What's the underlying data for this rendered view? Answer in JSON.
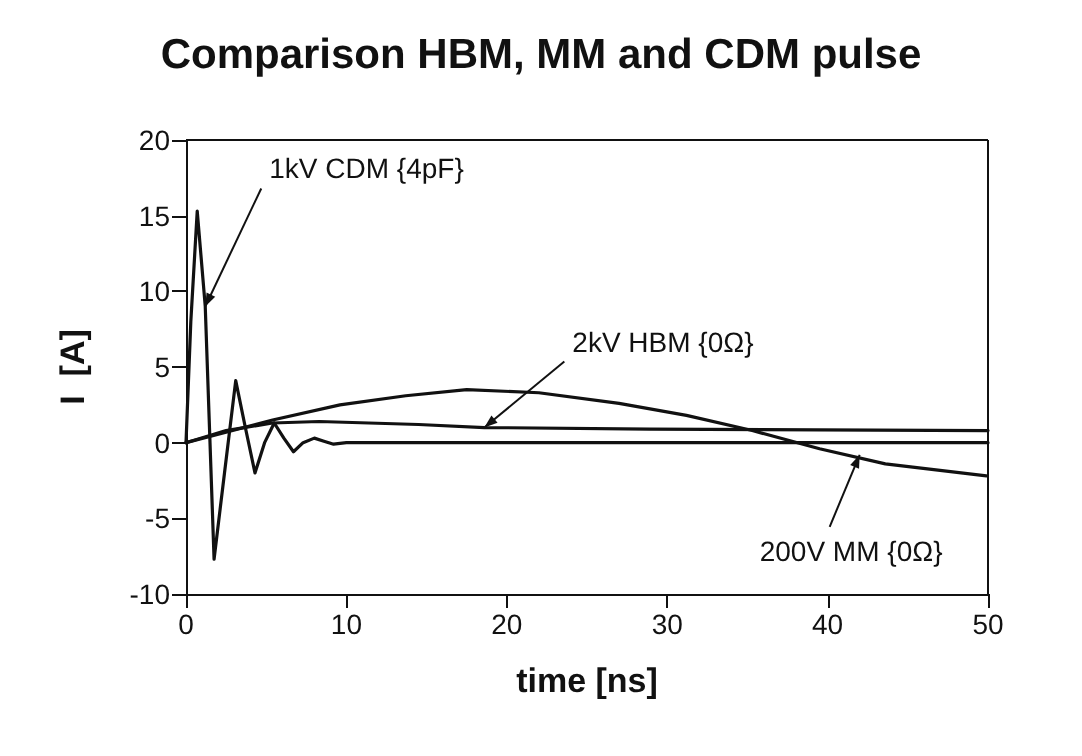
{
  "chart_data": {
    "type": "line",
    "title": "Comparison HBM, MM and CDM pulse",
    "xlabel": "time [ns]",
    "ylabel": "I  [A]",
    "xlim": [
      0,
      50
    ],
    "xticks": [
      0,
      10,
      20,
      30,
      40,
      50
    ],
    "ylim": [
      -10,
      20
    ],
    "yticks": [
      -10,
      -5,
      0,
      5,
      10,
      15,
      20
    ],
    "grid": false,
    "marker": "none",
    "line_style": "solid",
    "series": [
      {
        "color": "#111111",
        "x": [
          0,
          0.3,
          0.7,
          1.2,
          1.75,
          2.4,
          3.1,
          3.7,
          4.3,
          4.9,
          5.5,
          6.1,
          6.7,
          7.3,
          8.0,
          8.6,
          9.2,
          10,
          20,
          30,
          40,
          50
        ],
        "values": [
          0,
          8,
          15.3,
          9,
          -7.7,
          -2,
          4.1,
          1,
          -2,
          0,
          1.3,
          0.3,
          -0.6,
          0,
          0.3,
          0.1,
          -0.1,
          0,
          0,
          0,
          0,
          0
        ]
      },
      {
        "color": "#111111",
        "x": [
          0,
          2.5,
          5.4,
          8.3,
          14.5,
          18.6,
          28.9,
          50
        ],
        "values": [
          0,
          0.8,
          1.3,
          1.4,
          1.2,
          1.0,
          0.9,
          0.8
        ]
      },
      {
        "color": "#111111",
        "x": [
          0,
          5.4,
          9.6,
          13.7,
          17.5,
          22,
          27,
          31.2,
          35.3,
          39.5,
          43.6,
          49.9
        ],
        "values": [
          0,
          1.5,
          2.5,
          3.1,
          3.5,
          3.3,
          2.6,
          1.8,
          0.8,
          -0.4,
          -1.4,
          -2.2
        ]
      }
    ],
    "annotations": [
      {
        "text": "1kV CDM {4pF}",
        "x": 1.2,
        "y": 9
      },
      {
        "text": "2kV HBM {0Ω}",
        "x": 18.6,
        "y": 1.0
      },
      {
        "text": "200V MM {0Ω}",
        "x": 42,
        "y": -0.8
      }
    ]
  }
}
